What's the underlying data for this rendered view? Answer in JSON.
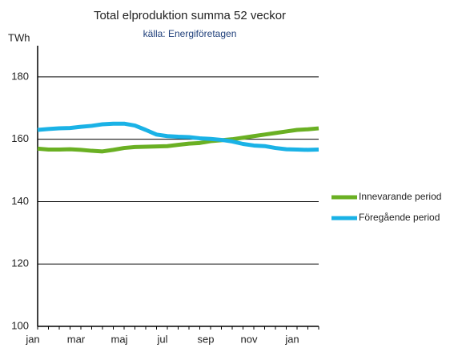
{
  "chart_data": {
    "type": "line",
    "title": "Total elproduktion summa 52 veckor",
    "subtitle": "källa: Energiföretagen",
    "y_label": "TWh",
    "categories": [
      "jan",
      null,
      null,
      null,
      "mar",
      null,
      null,
      null,
      "maj",
      null,
      null,
      null,
      "jul",
      null,
      null,
      null,
      "sep",
      null,
      null,
      null,
      "nov",
      null,
      null,
      null,
      "jan",
      null,
      null
    ],
    "series": [
      {
        "name": "Innevarande period",
        "color": "#6ab023",
        "values": [
          157,
          156.7,
          156.7,
          156.8,
          156.6,
          156.3,
          156.1,
          156.6,
          157.2,
          157.5,
          157.6,
          157.7,
          157.8,
          158.2,
          158.6,
          158.8,
          159.4,
          159.7,
          160,
          160.5,
          161,
          161.5,
          162,
          162.5,
          163,
          163.2,
          163.5
        ]
      },
      {
        "name": "Föregående period",
        "color": "#1ab2e6",
        "values": [
          163,
          163.3,
          163.5,
          163.6,
          164,
          164.3,
          164.8,
          165,
          165,
          164.4,
          163,
          161.5,
          161,
          160.8,
          160.7,
          160.3,
          160.1,
          159.8,
          159.3,
          158.5,
          158,
          157.8,
          157.2,
          156.8,
          156.7,
          156.6,
          156.7
        ]
      }
    ],
    "ylim": [
      100,
      190
    ],
    "yticks": [
      100,
      120,
      140,
      160,
      180
    ],
    "grid": true,
    "legend": "right"
  }
}
